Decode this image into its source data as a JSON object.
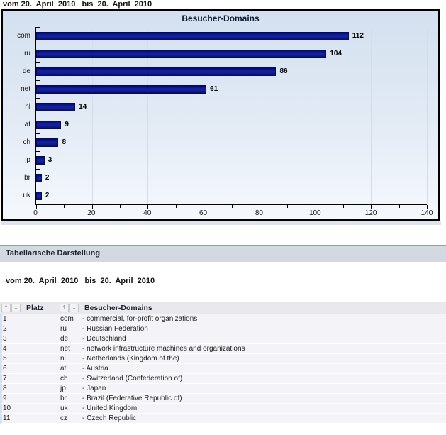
{
  "chart_section": {
    "date_range": "vom 20.  April  2010   bis  20.  April  2010"
  },
  "chart_data": {
    "type": "bar",
    "orientation": "horizontal",
    "title": "Besucher-Domains",
    "categories": [
      "com",
      "ru",
      "de",
      "net",
      "nl",
      "at",
      "ch",
      "jp",
      "br",
      "uk"
    ],
    "values": [
      112,
      104,
      86,
      61,
      14,
      9,
      8,
      3,
      2,
      2
    ],
    "xlabel": "",
    "ylabel": "",
    "xlim": [
      0,
      140
    ],
    "x_ticks": [
      0,
      20,
      40,
      60,
      80,
      100,
      120,
      140
    ],
    "minor_tick_step": 10,
    "grid": true,
    "legend": "none",
    "bar_color": "#14219e",
    "bar_edge_color": "#050b63",
    "panel_bg_top": "#d3e0ef",
    "panel_bg_bottom": "#f5f9fd"
  },
  "table_section": {
    "header_bar": "Tabellarische Darstellung",
    "date_range": "vom 20.  April  2010   bis  20.  April  2010",
    "sort_up_icon": "↑",
    "sort_down_icon": "↓",
    "columns": [
      {
        "label": "Platz"
      },
      {
        "label": "Besucher-Domains"
      }
    ],
    "rows": [
      {
        "rank": "1",
        "code": "com",
        "description": "- commercial, for-profit organizations"
      },
      {
        "rank": "2",
        "code": "ru",
        "description": "- Russian Federation"
      },
      {
        "rank": "3",
        "code": "de",
        "description": "- Deutschland"
      },
      {
        "rank": "4",
        "code": "net",
        "description": "- network infrastructure machines and organizations"
      },
      {
        "rank": "5",
        "code": "nl",
        "description": "- Netherlands (Kingdom of the)"
      },
      {
        "rank": "6",
        "code": "at",
        "description": "- Austria"
      },
      {
        "rank": "7",
        "code": "ch",
        "description": "- Switzerland (Confederation of)"
      },
      {
        "rank": "8",
        "code": "jp",
        "description": "- Japan"
      },
      {
        "rank": "9",
        "code": "br",
        "description": "- Brazil (Federative Republic of)"
      },
      {
        "rank": "10",
        "code": "uk",
        "description": "- United Kingdom"
      },
      {
        "rank": "11",
        "code": "cz",
        "description": "- Czech Republic"
      }
    ]
  }
}
